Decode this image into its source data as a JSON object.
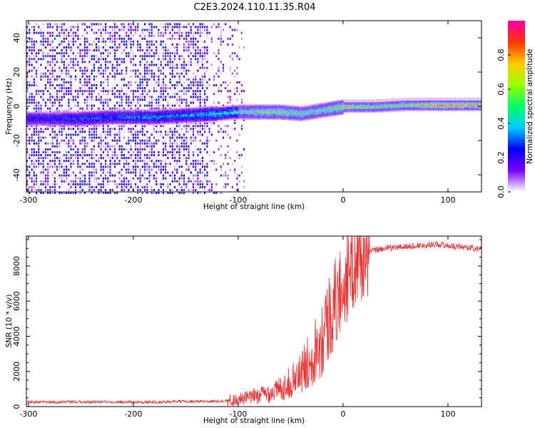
{
  "title": "C2E3.2024.110.11.35.R04",
  "chart_data": [
    {
      "type": "heatmap",
      "xlabel": "Height of straight line (km)",
      "ylabel": "Frequency (Hz)",
      "xlim": [
        -302,
        132
      ],
      "ylim": [
        -50,
        50
      ],
      "xticks": [
        -300,
        -200,
        -100,
        0,
        100
      ],
      "yticks": [
        -40,
        -20,
        0,
        20,
        40
      ],
      "colorbar": {
        "label": "Normalized spectral amplitude",
        "range": [
          0,
          1
        ],
        "ticks": [
          "0.0",
          "0.2",
          "0.4",
          "0.6",
          "0.8"
        ],
        "colors": [
          "#ffffff",
          "#7a00ff",
          "#0000ff",
          "#00ccff",
          "#00ff66",
          "#99ff00",
          "#ffcc00",
          "#ff3300",
          "#ff00aa"
        ]
      },
      "ridge": [
        {
          "x": -280,
          "freq": -7,
          "amp": 0.25
        },
        {
          "x": -250,
          "freq": -7,
          "amp": 0.3
        },
        {
          "x": -220,
          "freq": -6,
          "amp": 0.3
        },
        {
          "x": -180,
          "freq": -6,
          "amp": 0.35
        },
        {
          "x": -150,
          "freq": -5,
          "amp": 0.35
        },
        {
          "x": -120,
          "freq": -4,
          "amp": 0.4
        },
        {
          "x": -100,
          "freq": -3,
          "amp": 0.45
        },
        {
          "x": -80,
          "freq": -3,
          "amp": 0.55
        },
        {
          "x": -60,
          "freq": -3,
          "amp": 0.6
        },
        {
          "x": -40,
          "freq": -4,
          "amp": 0.5
        },
        {
          "x": -20,
          "freq": -2,
          "amp": 0.5
        },
        {
          "x": 0,
          "freq": 0,
          "amp": 0.7
        },
        {
          "x": 30,
          "freq": 0,
          "amp": 0.6
        },
        {
          "x": 60,
          "freq": 1,
          "amp": 0.65
        },
        {
          "x": 90,
          "freq": 1,
          "amp": 0.85
        },
        {
          "x": 130,
          "freq": 1,
          "amp": 0.8
        }
      ]
    },
    {
      "type": "line",
      "xlabel": "Height of straight line (km)",
      "ylabel": "SNR (10 * v/v)",
      "xlim": [
        -302,
        132
      ],
      "ylim": [
        0,
        9700
      ],
      "xticks": [
        -300,
        -200,
        -100,
        0,
        100
      ],
      "yticks": [
        0,
        2000,
        4000,
        6000,
        8000
      ],
      "color": "#ee3030",
      "series": [
        {
          "x": [
            -300,
            -280,
            -260,
            -240,
            -220,
            -200,
            -180,
            -160,
            -140,
            -120,
            -110,
            -100,
            -90,
            -80,
            -70,
            -60,
            -50,
            -40,
            -35,
            -30,
            -25,
            -20,
            -15,
            -10,
            -5,
            0,
            5,
            10,
            15,
            20,
            25,
            30,
            40,
            50,
            60,
            70,
            80,
            90,
            100,
            110,
            120,
            130
          ],
          "values": [
            250,
            250,
            260,
            260,
            280,
            250,
            250,
            280,
            300,
            300,
            350,
            400,
            500,
            650,
            800,
            1000,
            1400,
            1900,
            2400,
            2900,
            3500,
            4100,
            4800,
            5500,
            6200,
            6900,
            7500,
            8000,
            8400,
            8650,
            8800,
            8900,
            9000,
            9050,
            9100,
            9150,
            9200,
            9250,
            9150,
            9100,
            9050,
            8950
          ]
        }
      ]
    }
  ]
}
